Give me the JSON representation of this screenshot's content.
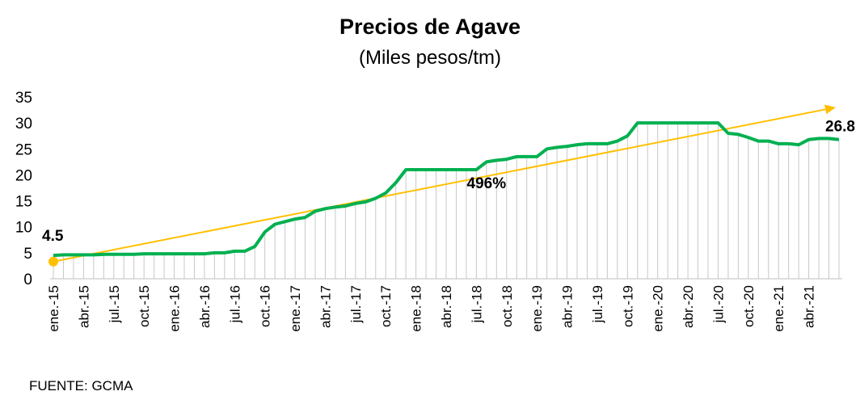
{
  "chart_data": {
    "type": "line",
    "title": "Precios de Agave",
    "subtitle": "(Miles pesos/tm)",
    "source": "FUENTE: GCMA",
    "ylim": [
      0,
      35
    ],
    "y_ticks": [
      0,
      5,
      10,
      15,
      20,
      25,
      30,
      35
    ],
    "grid": "vertical drop lines per month",
    "x_tick_labels": [
      "ene.-15",
      "abr.-15",
      "jul.-15",
      "oct.-15",
      "ene.-16",
      "abr.-16",
      "jul.-16",
      "oct.-16",
      "ene.-17",
      "abr.-17",
      "jul.-17",
      "oct.-17",
      "ene.-18",
      "abr.-18",
      "jul.-18",
      "oct.-18",
      "ene.-19",
      "abr.-19",
      "jul.-19",
      "oct.-19",
      "ene.-20",
      "abr.-20",
      "jul.-20",
      "oct.-20",
      "ene.-21",
      "abr.-21"
    ],
    "series": [
      {
        "values": [
          4.5,
          4.6,
          4.6,
          4.6,
          4.6,
          4.7,
          4.7,
          4.7,
          4.7,
          4.8,
          4.8,
          4.8,
          4.8,
          4.8,
          4.8,
          4.8,
          5.0,
          5.0,
          5.3,
          5.3,
          6.2,
          9.0,
          10.5,
          11.0,
          11.5,
          11.8,
          13.0,
          13.5,
          13.8,
          14.0,
          14.5,
          14.8,
          15.5,
          16.5,
          18.5,
          21.0,
          21.0,
          21.0,
          21.0,
          21.0,
          21.0,
          21.0,
          21.0,
          22.5,
          22.8,
          23.0,
          23.5,
          23.5,
          23.5,
          25.0,
          25.3,
          25.5,
          25.8,
          26.0,
          26.0,
          26.0,
          26.5,
          27.5,
          30.0,
          30.0,
          30.0,
          30.0,
          30.0,
          30.0,
          30.0,
          30.0,
          30.0,
          28.0,
          27.8,
          27.2,
          26.5,
          26.5,
          26.0,
          26.0,
          25.8,
          26.8,
          27.0,
          27.0,
          26.8
        ],
        "color": "#00b050"
      },
      {
        "type": "trend",
        "values": [
          3.3,
          33.0
        ],
        "color": "#ffc000"
      }
    ],
    "annotations": {
      "start_label": "4.5",
      "end_label": "26.8",
      "growth_label": "496%"
    }
  }
}
